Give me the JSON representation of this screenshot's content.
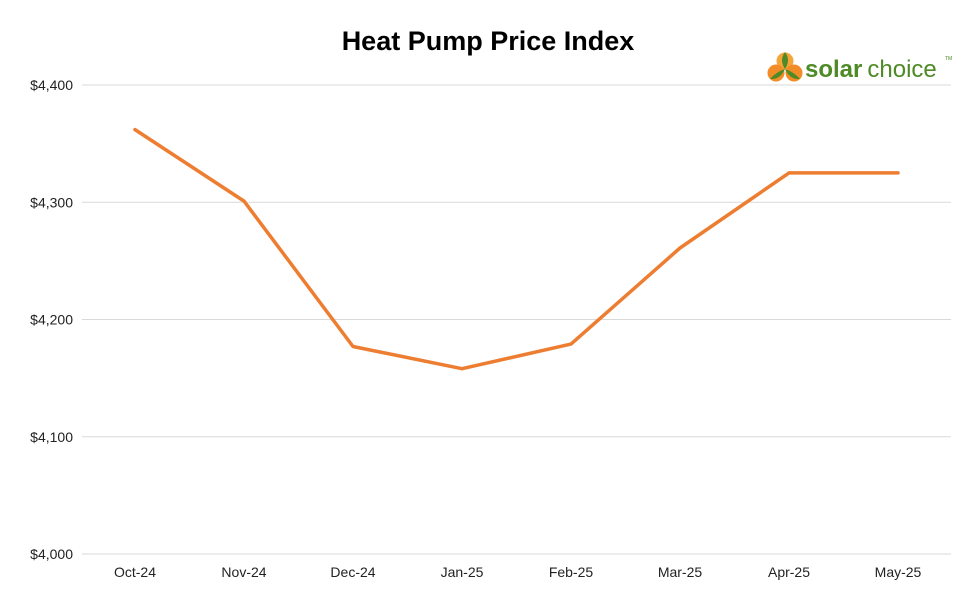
{
  "colors": {
    "series": "#ed7d31",
    "grid": "#d9d9d9",
    "logo_green": "#4e8a26",
    "logo_orange": "#f28c28",
    "logo_orange_light": "#f6a33a"
  },
  "logo": {
    "word_bold": "solar",
    "word_light": "choice",
    "tm": "TM"
  },
  "chart_data": {
    "type": "line",
    "title": "Heat Pump Price Index",
    "xlabel": "",
    "ylabel": "",
    "categories": [
      "Oct-24",
      "Nov-24",
      "Dec-24",
      "Jan-25",
      "Feb-25",
      "Mar-25",
      "Apr-25",
      "May-25"
    ],
    "values": [
      4362,
      4301,
      4177,
      4158,
      4179,
      4261,
      4325,
      4325
    ],
    "ylim": [
      4000,
      4400
    ],
    "yticks": [
      4000,
      4100,
      4200,
      4300,
      4400
    ],
    "ytick_labels": [
      "$4,000",
      "$4,100",
      "$4,200",
      "$4,300",
      "$4,400"
    ],
    "grid": true,
    "legend": "none"
  }
}
